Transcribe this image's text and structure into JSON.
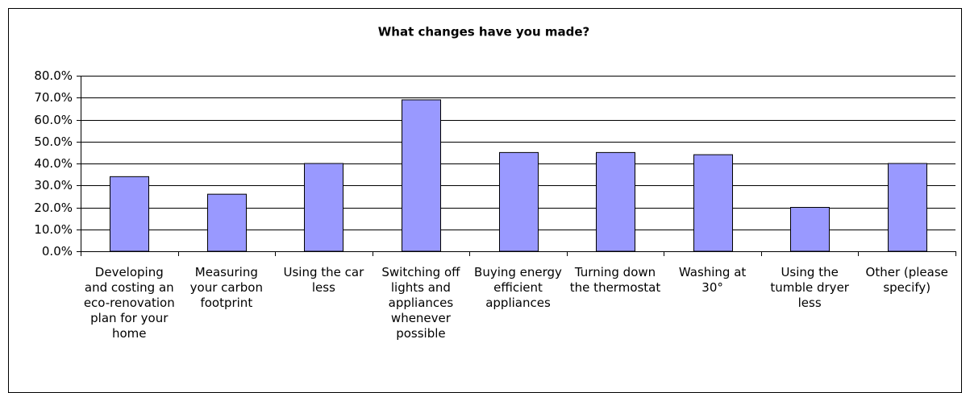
{
  "chart_data": {
    "type": "bar",
    "title": "What changes have you made?",
    "categories": [
      "Developing and costing an eco-renovation plan for your home",
      "Measuring your carbon footprint",
      "Using the car less",
      "Switching off lights and appliances whenever possible",
      "Buying energy efficient appliances",
      "Turning down the thermostat",
      "Washing at 30°",
      "Using the tumble dryer less",
      "Other (please specify)"
    ],
    "values": [
      34,
      26,
      40,
      69,
      45,
      45,
      44,
      20,
      40
    ],
    "color": "#9999ff",
    "ylim": [
      0,
      80
    ],
    "yticks": [
      {
        "value": 0,
        "label": "0.0%"
      },
      {
        "value": 10,
        "label": "10.0%"
      },
      {
        "value": 20,
        "label": "20.0%"
      },
      {
        "value": 30,
        "label": "30.0%"
      },
      {
        "value": 40,
        "label": "40.0%"
      },
      {
        "value": 50,
        "label": "50.0%"
      },
      {
        "value": 60,
        "label": "60.0%"
      },
      {
        "value": 70,
        "label": "70.0%"
      },
      {
        "value": 80,
        "label": "80.0%"
      }
    ],
    "grid": true
  }
}
